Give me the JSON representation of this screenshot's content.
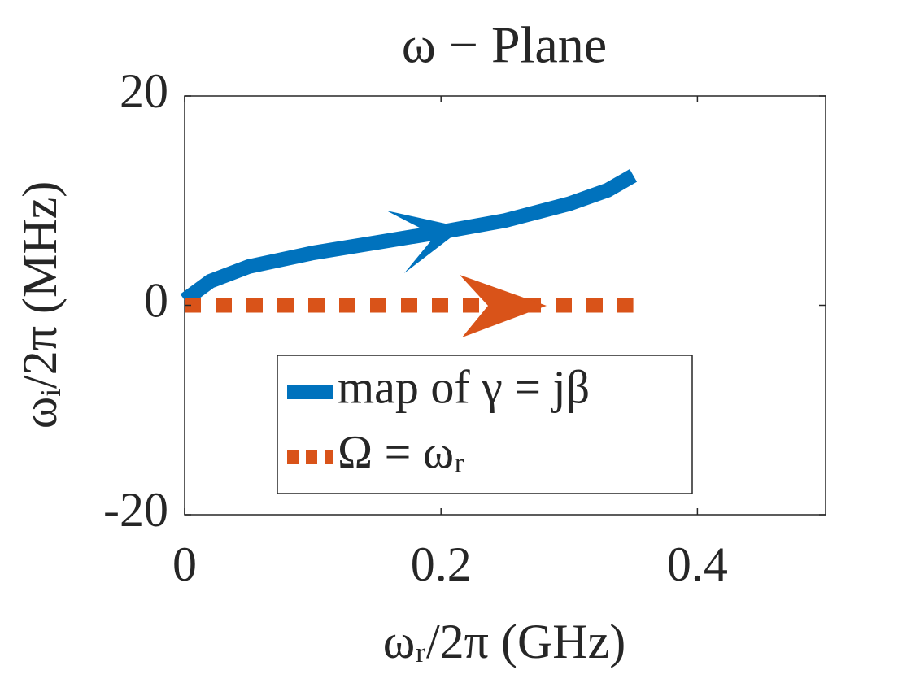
{
  "chart_data": {
    "type": "line",
    "title": "ω − Plane",
    "x_label": "ωᵣ/2π (GHz)",
    "y_label": "ωᵢ/2π (MHz)",
    "xlim": [
      0,
      0.5
    ],
    "xticks": [
      0,
      0.2,
      0.4
    ],
    "ylim": [
      -20,
      20
    ],
    "yticks": [
      -20,
      0,
      20
    ],
    "grid": false,
    "legend_loc": "south",
    "series": [
      {
        "name": "map of γ = jβ",
        "color": "#0072bd",
        "dashed": false,
        "x": [
          0,
          0.02,
          0.05,
          0.1,
          0.15,
          0.2,
          0.25,
          0.3,
          0.33,
          0.35
        ],
        "values": [
          0.5,
          2.3,
          3.7,
          5.0,
          6.0,
          7.0,
          8.1,
          9.7,
          11.0,
          12.4
        ]
      },
      {
        "name": "Ω = ωᵣ",
        "color": "#d95319",
        "dashed": true,
        "x": [
          0,
          0.35
        ],
        "values": [
          0,
          0
        ]
      }
    ]
  }
}
